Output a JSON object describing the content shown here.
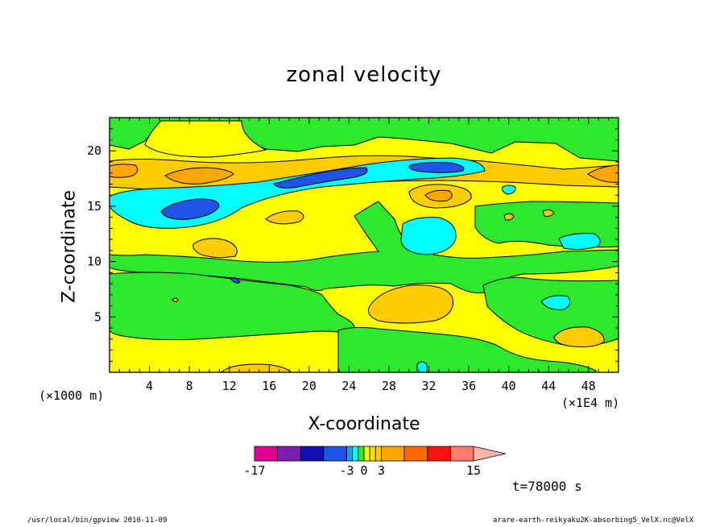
{
  "chart_data": {
    "type": "heatmap",
    "title": "zonal velocity",
    "xlabel": "X-coordinate",
    "ylabel": "Z-coordinate",
    "x_unit_label": "(×1000 m)",
    "x_scale_label": "(×1E4 m)",
    "xlim": [
      0,
      51
    ],
    "ylim": [
      0,
      23
    ],
    "x_ticks": [
      "4",
      "8",
      "12",
      "16",
      "20",
      "24",
      "28",
      "32",
      "36",
      "40",
      "44",
      "48"
    ],
    "y_ticks": [
      "5",
      "10",
      "15",
      "20"
    ],
    "x_tick_values": [
      4,
      8,
      12,
      16,
      20,
      24,
      28,
      32,
      36,
      40,
      44,
      48
    ],
    "y_tick_values": [
      5,
      10,
      15,
      20
    ],
    "colorbar": {
      "levels": [
        -17,
        -12,
        -9,
        -6,
        -3,
        -2,
        -1,
        0,
        1,
        2,
        3,
        6,
        9,
        12,
        15
      ],
      "colors": [
        "#e00090",
        "#7a20b0",
        "#1010b0",
        "#1e55e6",
        "#1ea0f0",
        "#00ffff",
        "#2ee82e",
        "#ffff00",
        "#f5e000",
        "#ffcc00",
        "#ffa500",
        "#ff6a00",
        "#ff1010",
        "#ff7b6e"
      ],
      "tick_labels": [
        "-17",
        "-3",
        "0",
        "3",
        "15"
      ],
      "tick_values": [
        -17,
        -3,
        0,
        3,
        15
      ]
    },
    "regions": [
      {
        "value": 0.5,
        "desc": "upper-left slight positive",
        "x": 5,
        "y": 20.5
      },
      {
        "value": 4,
        "desc": "jet core orange",
        "x": 8.5,
        "y": 17.6
      },
      {
        "value": 2.5,
        "desc": "left edge orange",
        "x": 1.5,
        "y": 18
      },
      {
        "value": 4,
        "desc": "right edge orange",
        "x": 49.5,
        "y": 17.8
      },
      {
        "value": -2.5,
        "desc": "cyan band",
        "x": 20,
        "y": 16.5
      },
      {
        "value": -6.5,
        "desc": "blue core",
        "x": 8,
        "y": 14.5
      },
      {
        "value": -5.5,
        "desc": "blue streak",
        "x": 22,
        "y": 17.2
      },
      {
        "value": -5.5,
        "desc": "blue streak right",
        "x": 31,
        "y": 18.3
      },
      {
        "value": 3.5,
        "desc": "orange blob",
        "x": 33,
        "y": 15.8
      },
      {
        "value": 2.5,
        "desc": "orange blob small",
        "x": 17,
        "y": 13.8
      },
      {
        "value": 2.5,
        "desc": "orange blob",
        "x": 10.5,
        "y": 11.3
      },
      {
        "value": -2.5,
        "desc": "cyan blob",
        "x": 31,
        "y": 12.3
      },
      {
        "value": -2.5,
        "desc": "cyan blob right",
        "x": 47,
        "y": 11.8
      },
      {
        "value": -2.5,
        "desc": "cyan blob",
        "x": 45,
        "y": 6.3
      },
      {
        "value": 2.5,
        "desc": "orange blob lower",
        "x": 31,
        "y": 6.4
      },
      {
        "value": 2.5,
        "desc": "orange blob lower right",
        "x": 46.5,
        "y": 3.3
      },
      {
        "value": 2.5,
        "desc": "orange bottom",
        "x": 15.5,
        "y": 0.3
      },
      {
        "value": -1.5,
        "desc": "green lower band",
        "x": 20,
        "y": 7.5
      }
    ]
  },
  "texts": {
    "x_unit_left": "(×1000 m)",
    "x_unit_right": "(×1E4 m)",
    "time": "t=78000 s",
    "footer_left": "/usr/local/bin/gpview  2010-11-09",
    "footer_right": "arare-earth-reikyaku2K-absorbing5_VelX.nc@VelX"
  }
}
